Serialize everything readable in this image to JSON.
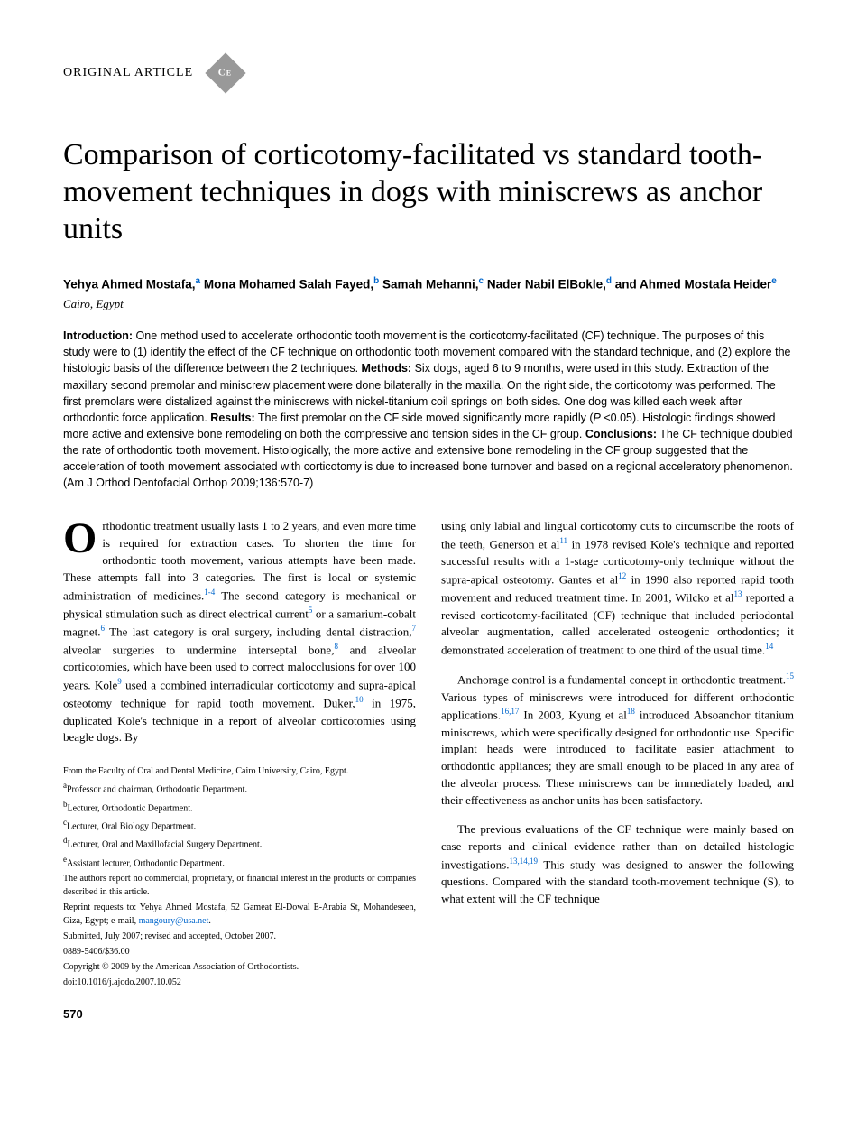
{
  "label": "ORIGINAL ARTICLE",
  "badge_text": "C\nE",
  "title": "Comparison of corticotomy-facilitated vs standard tooth-movement techniques in dogs with miniscrews as anchor units",
  "authors_html": "Yehya Ahmed Mostafa,<sup>a</sup> Mona Mohamed Salah Fayed,<sup>b</sup> Samah Mehanni,<sup>c</sup> Nader Nabil ElBokle,<sup>d</sup> and Ahmed Mostafa Heider<sup>e</sup>",
  "location": "Cairo, Egypt",
  "abstract": {
    "intro_label": "Introduction:",
    "intro": " One method used to accelerate orthodontic tooth movement is the corticotomy-facilitated (CF) technique. The purposes of this study were to (1) identify the effect of the CF technique on orthodontic tooth movement compared with the standard technique, and (2) explore the histologic basis of the difference between the 2 techniques. ",
    "methods_label": "Methods:",
    "methods": " Six dogs, aged 6 to 9 months, were used in this study. Extraction of the maxillary second premolar and miniscrew placement were done bilaterally in the maxilla. On the right side, the corticotomy was performed. The first premolars were distalized against the miniscrews with nickel-titanium coil springs on both sides. One dog was killed each week after orthodontic force application. ",
    "results_label": "Results:",
    "results_pre": " The first premolar on the CF side moved significantly more rapidly (",
    "results_p": "P",
    "results_post": " <0.05). Histologic findings showed more active and extensive bone remodeling on both the compressive and tension sides in the CF group. ",
    "conclusions_label": "Conclusions:",
    "conclusions": " The CF technique doubled the rate of orthodontic tooth movement. Histologically, the more active and extensive bone remodeling in the CF group suggested that the acceleration of tooth movement associated with corticotomy is due to increased bone turnover and based on a regional acceleratory phenomenon. (Am J Orthod Dentofacial Orthop 2009;136:570-7)"
  },
  "body": {
    "drop_rest": "rthodontic treatment usually lasts 1 to 2 years, and even more time is required for extraction cases. To shorten the time for orthodontic tooth movement, various attempts have been made. These attempts fall into 3 categories. The first is local or systemic administration of medicines.",
    "s1a": " The second category is mechanical or physical stimulation such as direct electrical current",
    "s1b": " or a samarium-cobalt magnet.",
    "s1c": " The last category is oral surgery, including dental distraction,",
    "s1d": " alveolar surgeries to undermine interseptal bone,",
    "s1e": " and alveolar corticotomies, which have been used to correct malocclusions for over 100 years. Kole",
    "s1f": " used a combined interradicular corticotomy and supra-apical osteotomy technique for rapid tooth movement. Duker,",
    "s1g": " in 1975, duplicated Kole's technique in a report of alveolar corticotomies using beagle dogs. By",
    "s2a": "using only labial and lingual corticotomy cuts to circumscribe the roots of the teeth, Generson et al",
    "s2b": " in 1978 revised Kole's technique and reported successful results with a 1-stage corticotomy-only technique without the supra-apical osteotomy. Gantes et al",
    "s2c": " in 1990 also reported rapid tooth movement and reduced treatment time. In 2001, Wilcko et al",
    "s2d": " reported a revised corticotomy-facilitated (CF) technique that included periodontal alveolar augmentation, called accelerated osteogenic orthodontics; it demonstrated acceleration of treatment to one third of the usual time.",
    "s2e": "",
    "s3a": "Anchorage control is a fundamental concept in orthodontic treatment.",
    "s3b": " Various types of miniscrews were introduced for different orthodontic applications.",
    "s3c": " In 2003, Kyung et al",
    "s3d": " introduced Absoanchor titanium miniscrews, which were specifically designed for orthodontic use. Specific implant heads were introduced to facilitate easier attachment to orthodontic appliances; they are small enough to be placed in any area of the alveolar process. These miniscrews can be immediately loaded, and their effectiveness as anchor units has been satisfactory.",
    "s4a": "The previous evaluations of the CF technique were mainly based on case reports and clinical evidence rather than on detailed histologic investigations.",
    "s4b": " This study was designed to answer the following questions. Compared with the standard tooth-movement technique (S), to what extent will the CF technique"
  },
  "refs": {
    "r1_4": "1-4",
    "r5": "5",
    "r6": "6",
    "r7": "7",
    "r8": "8",
    "r9": "9",
    "r10": "10",
    "r11": "11",
    "r12": "12",
    "r13": "13",
    "r14": "14",
    "r15": "15",
    "r16_17": "16,17",
    "r18": "18",
    "r13_14_19": "13,14,19"
  },
  "footnotes": {
    "from": "From the Faculty of Oral and Dental Medicine, Cairo University, Cairo, Egypt.",
    "a": "Professor and chairman, Orthodontic Department.",
    "b": "Lecturer, Orthodontic Department.",
    "c": "Lecturer, Oral Biology Department.",
    "d": "Lecturer, Oral and Maxillofacial Surgery Department.",
    "e": "Assistant lecturer, Orthodontic Department.",
    "disclosure": "The authors report no commercial, proprietary, or financial interest in the products or companies described in this article.",
    "reprint": "Reprint requests to: Yehya Ahmed Mostafa, 52 Gameat El-Dowal E-Arabia St, Mohandeseen, Giza, Egypt; e-mail, ",
    "email": "mangoury@usa.net",
    "reprint_end": ".",
    "submitted": "Submitted, July 2007; revised and accepted, October 2007.",
    "issn": "0889-5406/$36.00",
    "copyright": "Copyright © 2009 by the American Association of Orthodontists.",
    "doi": "doi:10.1016/j.ajodo.2007.10.052"
  },
  "page_number": "570"
}
